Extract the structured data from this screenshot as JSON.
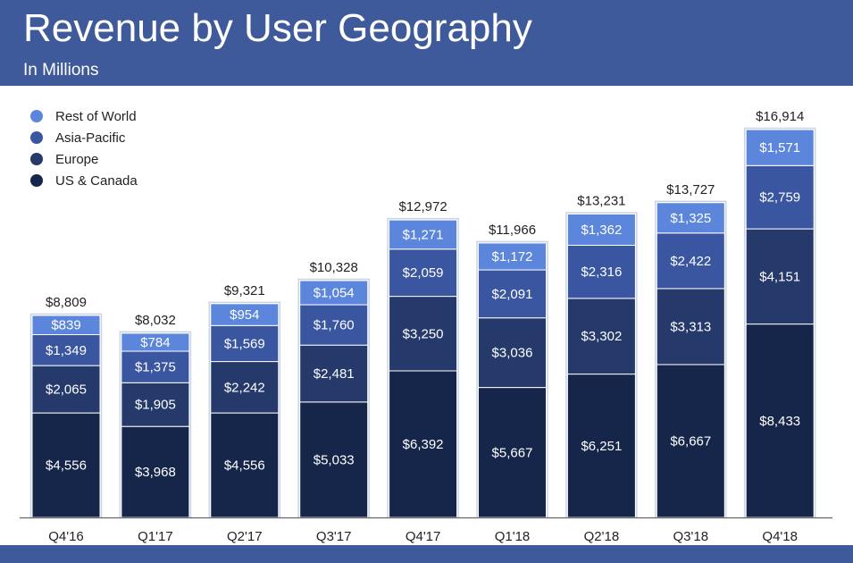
{
  "header": {
    "title": "Revenue by User Geography",
    "subtitle": "In Millions"
  },
  "colors": {
    "header_bg": "#3f5a9a",
    "US & Canada": "#16254a",
    "Europe": "#25396b",
    "Asia-Pacific": "#3a56a0",
    "Rest of World": "#5b86dc",
    "segment_border": "#ffffff",
    "bar_outline": "#c9d3e6",
    "axis": "#666666"
  },
  "legend": [
    {
      "label": "Rest of World",
      "color": "#5b86dc"
    },
    {
      "label": "Asia-Pacific",
      "color": "#3a56a0"
    },
    {
      "label": "Europe",
      "color": "#25396b"
    },
    {
      "label": "US & Canada",
      "color": "#16254a"
    }
  ],
  "chart_data": {
    "type": "bar",
    "stacked": true,
    "title": "Revenue by User Geography",
    "subtitle": "In Millions",
    "legend_position": "top-left",
    "grid": false,
    "categories": [
      "Q4'16",
      "Q1'17",
      "Q2'17",
      "Q3'17",
      "Q4'17",
      "Q1'18",
      "Q2'18",
      "Q3'18",
      "Q4'18"
    ],
    "series": [
      {
        "name": "US & Canada",
        "values": [
          4556,
          3968,
          4556,
          5033,
          6392,
          5667,
          6251,
          6667,
          8433
        ],
        "labels": [
          "$4,556",
          "$3,968",
          "$4,556",
          "$5,033",
          "$6,392",
          "$5,667",
          "$6,251",
          "$6,667",
          "$8,433"
        ]
      },
      {
        "name": "Europe",
        "values": [
          2065,
          1905,
          2242,
          2481,
          3250,
          3036,
          3302,
          3313,
          4151
        ],
        "labels": [
          "$2,065",
          "$1,905",
          "$2,242",
          "$2,481",
          "$3,250",
          "$3,036",
          "$3,302",
          "$3,313",
          "$4,151"
        ]
      },
      {
        "name": "Asia-Pacific",
        "values": [
          1349,
          1375,
          1569,
          1760,
          2059,
          2091,
          2316,
          2422,
          2759
        ],
        "labels": [
          "$1,349",
          "$1,375",
          "$1,569",
          "$1,760",
          "$2,059",
          "$2,091",
          "$2,316",
          "$2,422",
          "$2,759"
        ]
      },
      {
        "name": "Rest of World",
        "values": [
          839,
          784,
          954,
          1054,
          1271,
          1172,
          1362,
          1325,
          1571
        ],
        "labels": [
          "$839",
          "$784",
          "$954",
          "$1,054",
          "$1,271",
          "$1,172",
          "$1,362",
          "$1,325",
          "$1,571"
        ]
      }
    ],
    "totals": [
      8809,
      8032,
      9321,
      10328,
      12972,
      11966,
      13231,
      13727,
      16914
    ],
    "total_labels": [
      "$8,809",
      "$8,032",
      "$9,321",
      "$10,328",
      "$12,972",
      "$11,966",
      "$13,231",
      "$13,727",
      "$16,914"
    ],
    "ylim": [
      0,
      17000
    ]
  }
}
